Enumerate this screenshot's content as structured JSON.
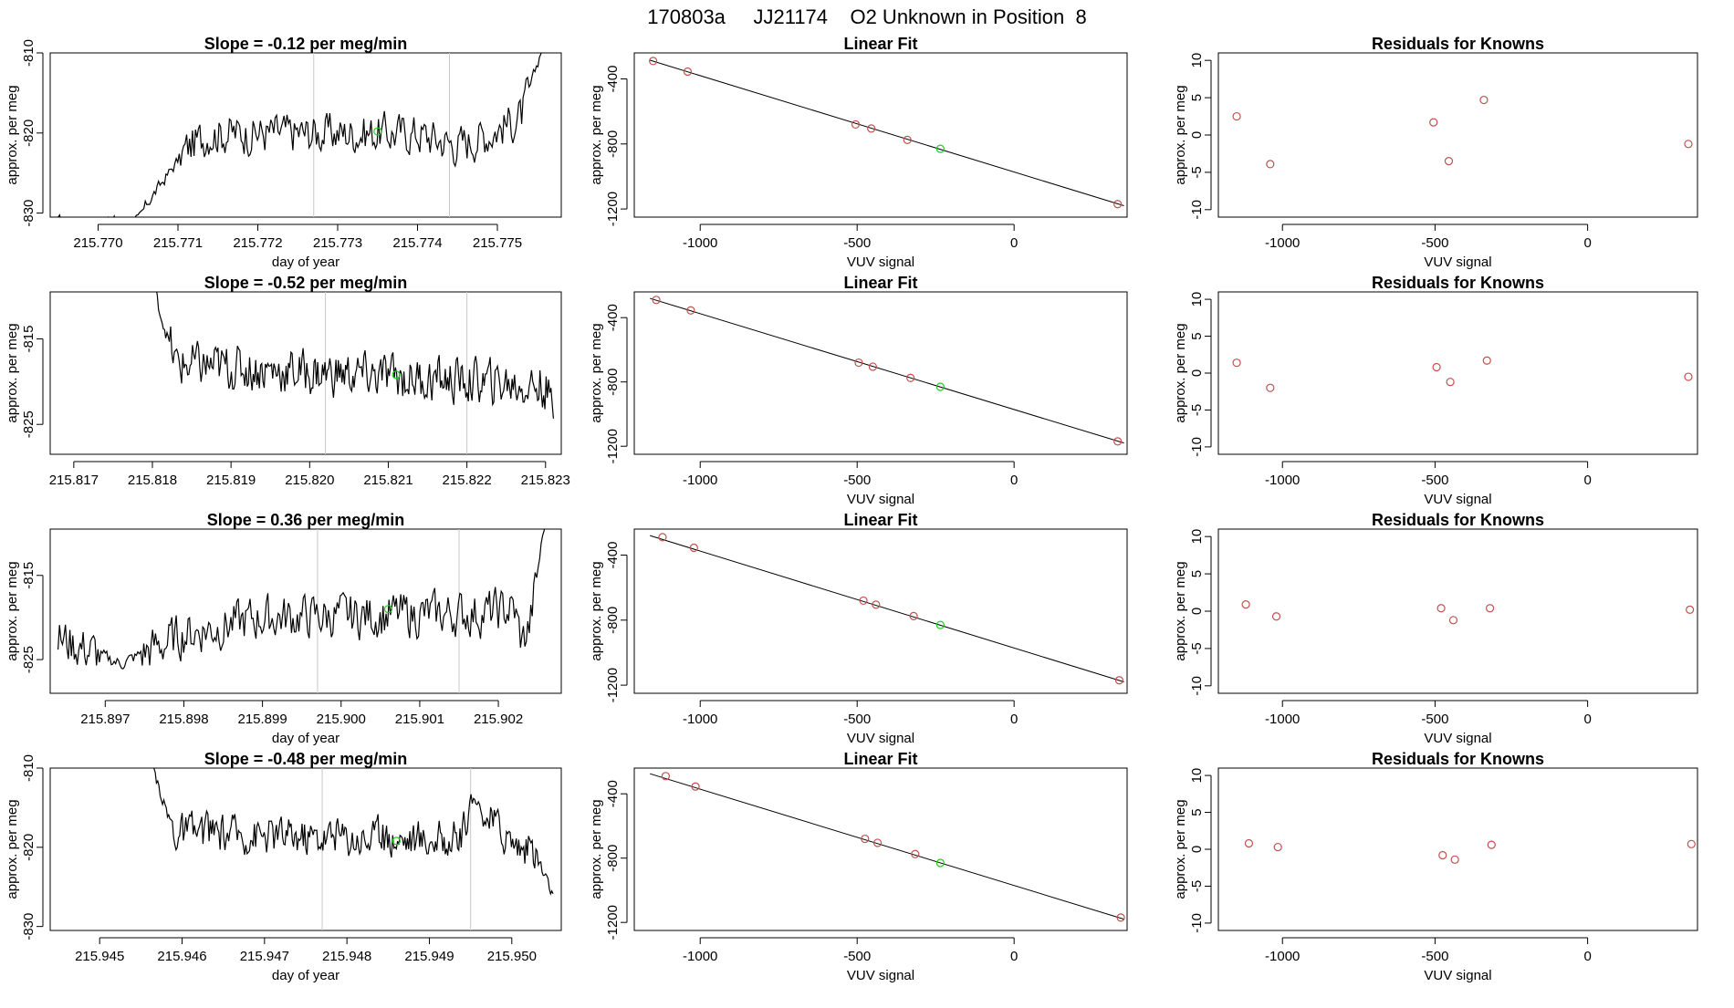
{
  "page_title": "170803a     JJ21174    O2 Unknown in Position  8",
  "colors": {
    "trace": "#000000",
    "known": "#c0504d",
    "unknown": "#22cc22",
    "window": "#c8c8c8"
  },
  "chart_data": [
    {
      "type": "line",
      "title": "Slope =  -0.12  per meg/min",
      "xlabel": "day of year",
      "ylabel": "approx. per meg",
      "xlim": [
        215.7694,
        215.7758
      ],
      "ylim": [
        -830.5,
        -810
      ],
      "xticks": [
        "215.770",
        "215.771",
        "215.772",
        "215.773",
        "215.774",
        "215.775"
      ],
      "yticks": [
        "-810",
        "-820",
        "-830"
      ],
      "window_lines": [
        215.7727,
        215.7744
      ],
      "base": -819,
      "amp": 2.3,
      "start": 215.7695,
      "end": 215.7756,
      "path": [
        [
          215.7695,
          -831
        ],
        [
          215.7705,
          -831
        ],
        [
          215.7706,
          -829
        ],
        [
          215.7711,
          -822
        ],
        [
          215.7714,
          -820
        ],
        [
          215.774,
          -820
        ],
        [
          215.7745,
          -821.5
        ],
        [
          215.7749,
          -820
        ],
        [
          215.7753,
          -818
        ],
        [
          215.7756,
          -808
        ]
      ],
      "unknown_point": [
        215.7735,
        -819.8
      ]
    },
    {
      "type": "scatter",
      "title": "Linear Fit",
      "xlabel": "VUV signal",
      "ylabel": "approx. per meg",
      "xlim": [
        -1210,
        360
      ],
      "ylim": [
        -1250,
        -240
      ],
      "xticks": [
        "-1000",
        "-500",
        "0"
      ],
      "yticks": [
        "-400",
        "-800",
        "-1200"
      ],
      "fit_line": [
        [
          -1160,
          -285
        ],
        [
          350,
          -1180
        ]
      ],
      "knowns": [
        [
          -1150,
          -290
        ],
        [
          -1040,
          -355
        ],
        [
          -505,
          -680
        ],
        [
          -455,
          -705
        ],
        [
          -340,
          -775
        ],
        [
          330,
          -1170
        ]
      ],
      "unknown": [
        [
          -235,
          -830
        ]
      ]
    },
    {
      "type": "scatter",
      "title": "Residuals for Knowns",
      "xlabel": "VUV signal",
      "ylabel": "approx. per meg",
      "xlim": [
        -1210,
        360
      ],
      "ylim": [
        -11,
        11
      ],
      "xticks": [
        "-1000",
        "-500",
        "0"
      ],
      "yticks": [
        "10",
        "5",
        "0",
        "-5",
        "-10"
      ],
      "points": [
        [
          -1150,
          2.5
        ],
        [
          -1040,
          -3.9
        ],
        [
          -505,
          1.7
        ],
        [
          -455,
          -3.5
        ],
        [
          -340,
          4.7
        ],
        [
          330,
          -1.2
        ]
      ]
    },
    {
      "type": "line",
      "title": "Slope =  -0.52  per meg/min",
      "xlabel": "",
      "ylabel": "approx. per meg",
      "xlim": [
        215.8167,
        215.8232
      ],
      "ylim": [
        -828.5,
        -809.5
      ],
      "xticks": [
        "215.817",
        "215.818",
        "215.819",
        "215.820",
        "215.821",
        "215.822",
        "215.823"
      ],
      "yticks": [
        "-815",
        "-825"
      ],
      "window_lines": [
        215.8202,
        215.822
      ],
      "base": -819.8,
      "amp": 2.4,
      "start": 215.818,
      "end": 215.8231,
      "path": [
        [
          215.818,
          -808
        ],
        [
          215.8181,
          -812
        ],
        [
          215.8183,
          -818
        ],
        [
          215.823,
          -820.5
        ],
        [
          215.8231,
          -824
        ]
      ],
      "unknown_point": [
        215.8211,
        -819.2
      ]
    },
    {
      "type": "scatter",
      "title": "Linear Fit",
      "xlabel": "VUV signal",
      "ylabel": "approx. per meg",
      "xlim": [
        -1210,
        360
      ],
      "ylim": [
        -1250,
        -240
      ],
      "xticks": [
        "-1000",
        "-500",
        "0"
      ],
      "yticks": [
        "-400",
        "-800",
        "-1200"
      ],
      "fit_line": [
        [
          -1160,
          -280
        ],
        [
          350,
          -1180
        ]
      ],
      "knowns": [
        [
          -1140,
          -290
        ],
        [
          -1030,
          -355
        ],
        [
          -495,
          -680
        ],
        [
          -450,
          -705
        ],
        [
          -330,
          -775
        ],
        [
          330,
          -1170
        ]
      ],
      "unknown": [
        [
          -235,
          -830
        ]
      ]
    },
    {
      "type": "scatter",
      "title": "Residuals for Knowns",
      "xlabel": "VUV signal",
      "ylabel": "approx. per meg",
      "xlim": [
        -1210,
        360
      ],
      "ylim": [
        -11,
        11
      ],
      "xticks": [
        "-1000",
        "-500",
        "0"
      ],
      "yticks": [
        "10",
        "5",
        "0",
        "-5",
        "-10"
      ],
      "points": [
        [
          -1150,
          1.4
        ],
        [
          -1040,
          -2.0
        ],
        [
          -495,
          0.8
        ],
        [
          -450,
          -1.2
        ],
        [
          -330,
          1.7
        ],
        [
          330,
          -0.5
        ]
      ]
    },
    {
      "type": "line",
      "title": "Slope =  0.36  per meg/min",
      "xlabel": "day of year",
      "ylabel": "approx. per meg",
      "xlim": [
        215.8963,
        215.9028
      ],
      "ylim": [
        -829,
        -809.5
      ],
      "xticks": [
        "215.897",
        "215.898",
        "215.899",
        "215.900",
        "215.901",
        "215.902"
      ],
      "yticks": [
        "-815",
        "-825"
      ],
      "window_lines": [
        215.8997,
        215.9015
      ],
      "base": -820.5,
      "amp": 2.4,
      "start": 215.8964,
      "end": 215.9026,
      "path": [
        [
          215.8964,
          -822.5
        ],
        [
          215.8972,
          -825.5
        ],
        [
          215.898,
          -822
        ],
        [
          215.899,
          -820
        ],
        [
          215.9018,
          -819.5
        ],
        [
          215.9022,
          -819
        ],
        [
          215.9023,
          -823
        ],
        [
          215.9024,
          -821
        ],
        [
          215.9026,
          -808
        ]
      ],
      "unknown_point": [
        215.9006,
        -819.0
      ]
    },
    {
      "type": "scatter",
      "title": "Linear Fit",
      "xlabel": "VUV signal",
      "ylabel": "approx. per meg",
      "xlim": [
        -1210,
        360
      ],
      "ylim": [
        -1250,
        -240
      ],
      "xticks": [
        "-1000",
        "-500",
        "0"
      ],
      "yticks": [
        "-400",
        "-800",
        "-1200"
      ],
      "fit_line": [
        [
          -1160,
          -280
        ],
        [
          350,
          -1180
        ]
      ],
      "knowns": [
        [
          -1120,
          -290
        ],
        [
          -1020,
          -355
        ],
        [
          -480,
          -680
        ],
        [
          -440,
          -705
        ],
        [
          -320,
          -775
        ],
        [
          335,
          -1170
        ]
      ],
      "unknown": [
        [
          -235,
          -830
        ]
      ]
    },
    {
      "type": "scatter",
      "title": "Residuals for Knowns",
      "xlabel": "VUV signal",
      "ylabel": "approx. per meg",
      "xlim": [
        -1210,
        360
      ],
      "ylim": [
        -11,
        11
      ],
      "xticks": [
        "-1000",
        "-500",
        "0"
      ],
      "yticks": [
        "10",
        "5",
        "0",
        "-5",
        "-10"
      ],
      "points": [
        [
          -1120,
          0.9
        ],
        [
          -1020,
          -0.7
        ],
        [
          -480,
          0.4
        ],
        [
          -440,
          -1.2
        ],
        [
          -320,
          0.4
        ],
        [
          335,
          0.2
        ]
      ]
    },
    {
      "type": "line",
      "title": "Slope =  -0.48  per meg/min",
      "xlabel": "day of year",
      "ylabel": "approx. per meg",
      "xlim": [
        215.9444,
        215.9506
      ],
      "ylim": [
        -830.5,
        -810
      ],
      "xticks": [
        "215.945",
        "215.946",
        "215.947",
        "215.948",
        "215.949",
        "215.950"
      ],
      "yticks": [
        "-810",
        "-820",
        "-830"
      ],
      "window_lines": [
        215.9477,
        215.9495
      ],
      "base": -819.5,
      "amp": 2.2,
      "start": 215.9456,
      "end": 215.9505,
      "path": [
        [
          215.9456,
          -808
        ],
        [
          215.9457,
          -812
        ],
        [
          215.9459,
          -818
        ],
        [
          215.9494,
          -819
        ],
        [
          215.9495,
          -814
        ],
        [
          215.9497,
          -816
        ],
        [
          215.95,
          -819
        ],
        [
          215.9503,
          -821
        ],
        [
          215.9505,
          -826
        ]
      ],
      "unknown_point": [
        215.9486,
        -819.2
      ]
    },
    {
      "type": "scatter",
      "title": "Linear Fit",
      "xlabel": "VUV signal",
      "ylabel": "approx. per meg",
      "xlim": [
        -1210,
        360
      ],
      "ylim": [
        -1250,
        -240
      ],
      "xticks": [
        "-1000",
        "-500",
        "0"
      ],
      "yticks": [
        "-400",
        "-800",
        "-1200"
      ],
      "fit_line": [
        [
          -1160,
          -275
        ],
        [
          350,
          -1180
        ]
      ],
      "knowns": [
        [
          -1110,
          -290
        ],
        [
          -1015,
          -355
        ],
        [
          -475,
          -680
        ],
        [
          -435,
          -705
        ],
        [
          -315,
          -775
        ],
        [
          340,
          -1170
        ]
      ],
      "unknown": [
        [
          -235,
          -830
        ]
      ]
    },
    {
      "type": "scatter",
      "title": "Residuals for Knowns",
      "xlabel": "VUV signal",
      "ylabel": "approx. per meg",
      "xlim": [
        -1210,
        360
      ],
      "ylim": [
        -11,
        11
      ],
      "xticks": [
        "-1000",
        "-500",
        "0"
      ],
      "yticks": [
        "10",
        "5",
        "0",
        "-5",
        "-10"
      ],
      "points": [
        [
          -1110,
          0.8
        ],
        [
          -1015,
          0.3
        ],
        [
          -475,
          -0.8
        ],
        [
          -435,
          -1.4
        ],
        [
          -315,
          0.6
        ],
        [
          340,
          0.7
        ]
      ]
    }
  ]
}
